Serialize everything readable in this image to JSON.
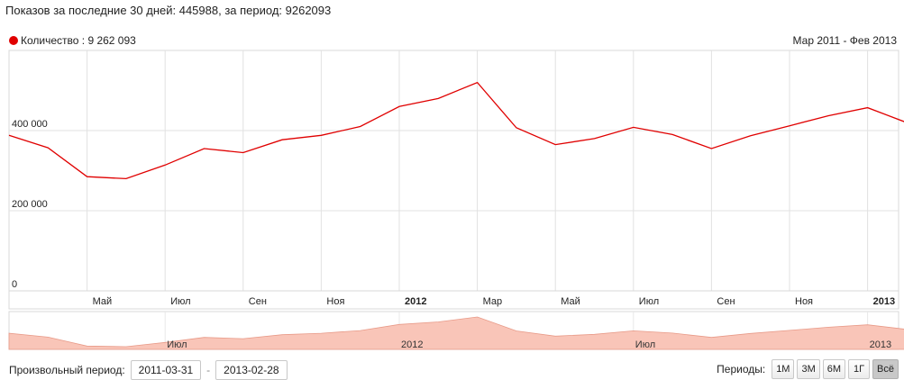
{
  "summary": "Показов за последние 30 дней: 445988, за период: 9262093",
  "legend": {
    "label": "Количество : 9 262 093",
    "color": "#e00000"
  },
  "range_label": "Мар 2011 - Фев 2013",
  "footer": {
    "period_label": "Произвольный период:",
    "date_from": "2011-03-31",
    "date_to": "2013-02-28",
    "dash": "-"
  },
  "periods": {
    "label": "Периоды:",
    "buttons": [
      {
        "label": "1М",
        "active": false
      },
      {
        "label": "3М",
        "active": false
      },
      {
        "label": "6М",
        "active": false
      },
      {
        "label": "1Г",
        "active": false
      },
      {
        "label": "Всё",
        "active": true
      }
    ]
  },
  "chart_data": {
    "type": "line",
    "grid": true,
    "ylim": [
      0,
      600000
    ],
    "y_ticks": [
      {
        "value": 0,
        "label": "0"
      },
      {
        "value": 200000,
        "label": "200 000"
      },
      {
        "value": 400000,
        "label": "400 000"
      }
    ],
    "x": [
      "2011-03",
      "2011-04",
      "2011-05",
      "2011-06",
      "2011-07",
      "2011-08",
      "2011-09",
      "2011-10",
      "2011-11",
      "2011-12",
      "2012-01",
      "2012-02",
      "2012-03",
      "2012-04",
      "2012-05",
      "2012-06",
      "2012-07",
      "2012-08",
      "2012-09",
      "2012-10",
      "2012-11",
      "2012-12",
      "2013-01",
      "2013-02"
    ],
    "x_ticks": [
      {
        "index": 2,
        "label": "Май",
        "bold": false
      },
      {
        "index": 4,
        "label": "Июл",
        "bold": false
      },
      {
        "index": 6,
        "label": "Сен",
        "bold": false
      },
      {
        "index": 8,
        "label": "Ноя",
        "bold": false
      },
      {
        "index": 10,
        "label": "2012",
        "bold": true
      },
      {
        "index": 12,
        "label": "Мар",
        "bold": false
      },
      {
        "index": 14,
        "label": "Май",
        "bold": false
      },
      {
        "index": 16,
        "label": "Июл",
        "bold": false
      },
      {
        "index": 18,
        "label": "Сен",
        "bold": false
      },
      {
        "index": 20,
        "label": "Ноя",
        "bold": false
      },
      {
        "index": 22,
        "label": "2013",
        "bold": true
      }
    ],
    "series": [
      {
        "color": "#e00000",
        "values": [
          388000,
          357000,
          285000,
          280000,
          314000,
          355000,
          345000,
          377000,
          388000,
          410000,
          460000,
          480000,
          520000,
          407000,
          365000,
          380000,
          408000,
          390000,
          355000,
          387000,
          412000,
          437000,
          457000,
          420000
        ]
      }
    ],
    "navigator": {
      "fill_color": "#f9c5b8",
      "labels": [
        {
          "index": 4,
          "label": "Июл"
        },
        {
          "index": 10,
          "label": "2012"
        },
        {
          "index": 16,
          "label": "Июл"
        },
        {
          "index": 22,
          "label": "2013"
        }
      ]
    }
  }
}
